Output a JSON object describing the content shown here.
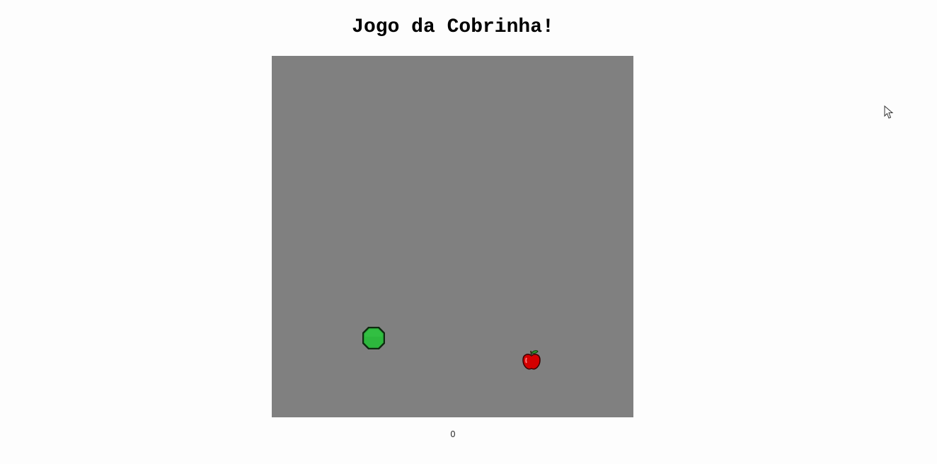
{
  "game": {
    "title": "Jogo da Cobrinha!",
    "score": "0"
  },
  "board": {
    "background": "#808080"
  },
  "sprites": {
    "snake_head": {
      "icon": "snake-head-icon",
      "color": "#2db83d"
    },
    "food": {
      "icon": "apple-icon",
      "color": "#d40000"
    }
  },
  "cursor": {
    "icon": "mouse-cursor-icon"
  }
}
